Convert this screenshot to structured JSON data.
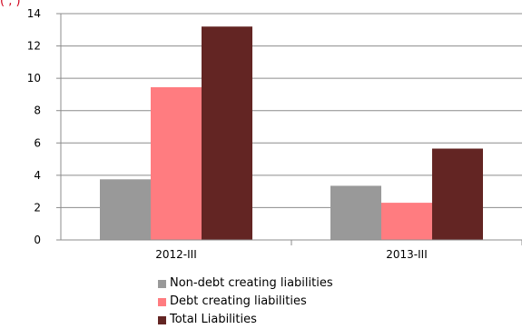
{
  "chart_data": {
    "type": "bar",
    "title_fragment": "(         ,            )",
    "categories": [
      "2012-III",
      "2013-III"
    ],
    "series": [
      {
        "name": "Non-debt creating liabilities",
        "values": [
          3.75,
          3.35
        ],
        "color": "#999999"
      },
      {
        "name": "Debt creating liabilities",
        "values": [
          9.45,
          2.3
        ],
        "color": "#ff7c80"
      },
      {
        "name": "Total Liabilities",
        "values": [
          13.2,
          5.65
        ],
        "color": "#632523"
      }
    ],
    "ylim": [
      0,
      14
    ],
    "yticks": [
      0,
      2,
      4,
      6,
      8,
      10,
      12,
      14
    ],
    "grid": true,
    "legend_position": "bottom"
  }
}
